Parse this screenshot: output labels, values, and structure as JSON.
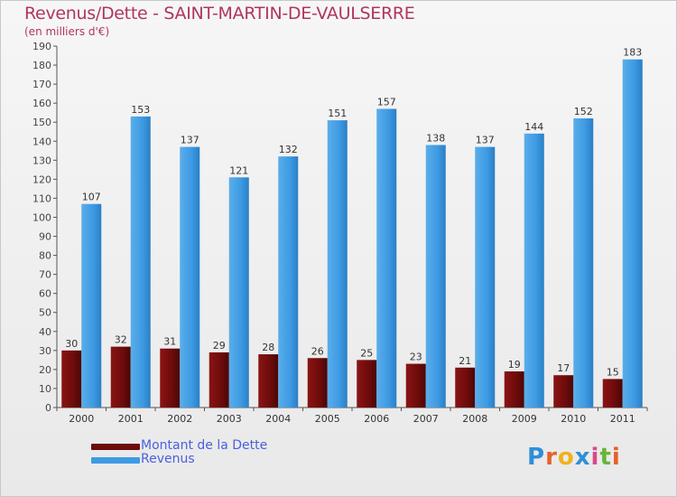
{
  "header": {
    "title": "Revenus/Dette - SAINT-MARTIN-DE-VAULSERRE",
    "subtitle": "(en milliers d'€)"
  },
  "legend": {
    "items": [
      {
        "label": "Montant de la Dette",
        "color": "#6e0b0b"
      },
      {
        "label": "Revenus",
        "color": "#3d9ae3"
      }
    ]
  },
  "logo": {
    "letters": [
      "P",
      "r",
      "o",
      "x",
      "i",
      "t",
      "i"
    ],
    "colors": [
      "#2f8fd8",
      "#e8602a",
      "#f0b21c",
      "#2f8fd8",
      "#d84a8a",
      "#6ab43a",
      "#e8602a"
    ]
  },
  "chart_data": {
    "type": "bar",
    "categories": [
      "2000",
      "2001",
      "2002",
      "2003",
      "2004",
      "2005",
      "2006",
      "2007",
      "2008",
      "2009",
      "2010",
      "2011"
    ],
    "series": [
      {
        "name": "Montant de la Dette",
        "values": [
          30,
          32,
          31,
          29,
          28,
          26,
          25,
          23,
          21,
          19,
          17,
          15
        ],
        "color": "#6e0b0b"
      },
      {
        "name": "Revenus",
        "values": [
          107,
          153,
          137,
          121,
          132,
          151,
          157,
          138,
          137,
          144,
          152,
          183
        ],
        "color": "#3d9ae3"
      }
    ],
    "ylim": [
      0,
      190
    ],
    "yticks": [
      0,
      10,
      20,
      30,
      40,
      50,
      60,
      70,
      80,
      90,
      100,
      110,
      120,
      130,
      140,
      150,
      160,
      170,
      180,
      190
    ],
    "grid": false,
    "legend_position": "bottom-left"
  }
}
